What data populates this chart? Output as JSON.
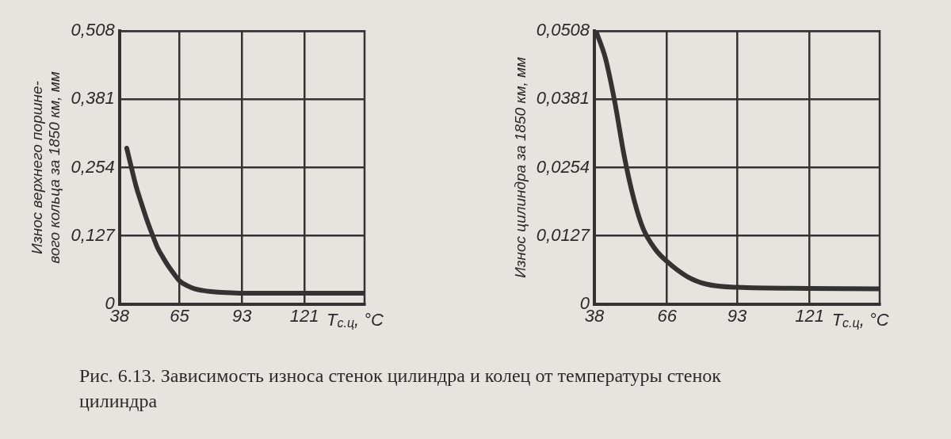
{
  "chart_data": [
    {
      "type": "line",
      "xlabel": "T$_{с.ц}$, °C",
      "ylabel": "Износ верхнего поршне-\nвого кольца за 1850 км, мм",
      "x": [
        41.3,
        43.5,
        45.5,
        48,
        50.3,
        52.7,
        55.1,
        57.5,
        59.9,
        62.5,
        65,
        68.5,
        72,
        75.5,
        79.3,
        86,
        93,
        121,
        148
      ],
      "series": [
        {
          "color": "#333333",
          "values": [
            0.29,
            0.252,
            0.219,
            0.186,
            0.157,
            0.13,
            0.105,
            0.087,
            0.071,
            0.056,
            0.043,
            0.034,
            0.028,
            0.025,
            0.023,
            0.021,
            0.02,
            0.02,
            0.02
          ]
        }
      ],
      "xlim": [
        38,
        148
      ],
      "xticks": [
        38,
        65,
        93,
        121
      ],
      "ylim": [
        0,
        0.508
      ],
      "yticks": [
        0,
        {
          "value": 0.127,
          "label": "0,127"
        },
        {
          "value": 0.254,
          "label": "0,254"
        },
        {
          "value": 0.381,
          "label": "0,381"
        },
        {
          "value": 0.508,
          "label": "0,508"
        }
      ],
      "grid": true,
      "annotations": [
        "Рис. 6.13. Зависимость износа стенок цилиндра и колец от температуры стенок цилиндра"
      ]
    },
    {
      "type": "line",
      "xlabel": "T$_{с.ц}$, °C",
      "ylabel": "Износ цилиндра за 1850 км, мм",
      "x": [
        38.6,
        42.2,
        45.8,
        49.5,
        53.1,
        56.8,
        61.6,
        66,
        73.8,
        81.1,
        93,
        121,
        148
      ],
      "series": [
        {
          "color": "#333333",
          "values": [
            0.0508,
            0.0458,
            0.0377,
            0.0275,
            0.0197,
            0.014,
            0.0101,
            0.0079,
            0.0051,
            0.0037,
            0.0031,
            0.0029,
            0.0028
          ]
        }
      ],
      "xlim": [
        38,
        148
      ],
      "xticks": [
        38,
        66,
        93,
        121
      ],
      "ylim": [
        0,
        0.0508
      ],
      "yticks": [
        0,
        {
          "value": 0.0127,
          "label": "0,0127"
        },
        {
          "value": 0.0254,
          "label": "0,0254"
        },
        {
          "value": 0.0381,
          "label": "0,0381"
        },
        {
          "value": 0.0508,
          "label": "0,0508"
        }
      ],
      "grid": true
    }
  ]
}
